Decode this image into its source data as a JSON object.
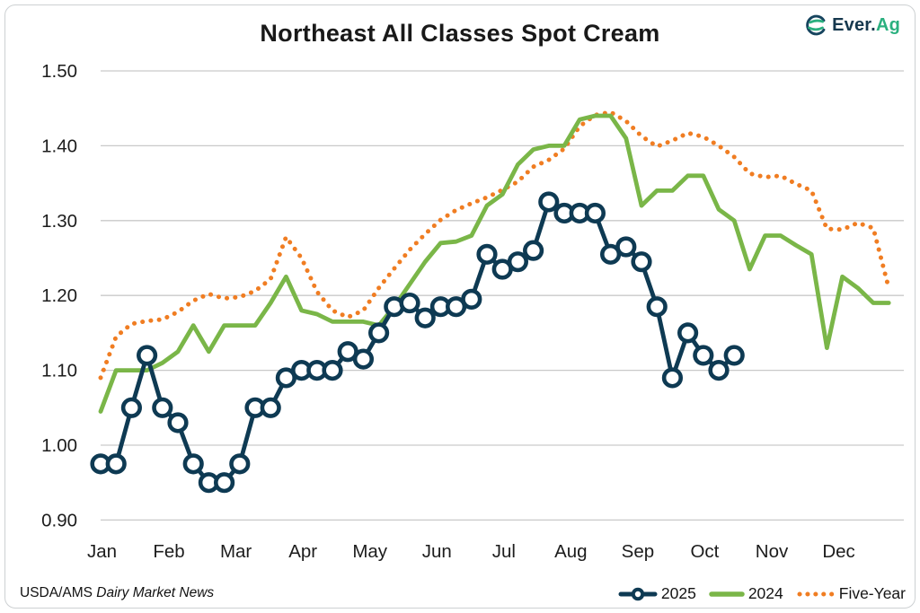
{
  "header": {
    "title": "Northeast All Classes Spot Cream",
    "logo": {
      "brand_prefix": "Ever.",
      "brand_suffix": "Ag"
    }
  },
  "footer": {
    "source_prefix": "USDA/AMS ",
    "source_name": "Dairy Market News"
  },
  "legend": {
    "items": [
      {
        "label": "2025",
        "color": "#0e3a53",
        "style": "line-marker"
      },
      {
        "label": "2024",
        "color": "#7ab648",
        "style": "line"
      },
      {
        "label": "Five-Year",
        "color": "#f07d22",
        "style": "dotted"
      }
    ]
  },
  "chart_data": {
    "type": "line",
    "title": "Northeast All Classes Spot Cream",
    "xlabel": "",
    "ylabel": "",
    "grid": "horizontal",
    "legend_position": "bottom-right",
    "x_axis": {
      "months": [
        "Jan",
        "Feb",
        "Mar",
        "Apr",
        "May",
        "Jun",
        "Jul",
        "Aug",
        "Sep",
        "Oct",
        "Nov",
        "Dec"
      ],
      "cadence": "weekly"
    },
    "y_axis": {
      "ticks": [
        1.5,
        1.4,
        1.3,
        1.2,
        1.1,
        1.0,
        0.9
      ],
      "range": [
        0.9,
        1.5
      ],
      "format": "multiple"
    },
    "series": [
      {
        "name": "2025",
        "color": "#0e3a53",
        "marker": "circle",
        "values": [
          0.975,
          0.975,
          1.05,
          1.12,
          1.05,
          1.03,
          0.975,
          0.95,
          0.95,
          0.975,
          1.05,
          1.05,
          1.09,
          1.1,
          1.1,
          1.1,
          1.125,
          1.115,
          1.15,
          1.185,
          1.19,
          1.17,
          1.185,
          1.185,
          1.195,
          1.255,
          1.235,
          1.245,
          1.26,
          1.325,
          1.31,
          1.31,
          1.31,
          1.255,
          1.265,
          1.245,
          1.185,
          1.09,
          1.15,
          1.12,
          1.1,
          1.12
        ]
      },
      {
        "name": "2024",
        "color": "#7ab648",
        "marker": "none",
        "values": [
          1.045,
          1.1,
          1.1,
          1.1,
          1.11,
          1.125,
          1.16,
          1.125,
          1.16,
          1.16,
          1.16,
          1.19,
          1.225,
          1.18,
          1.175,
          1.165,
          1.165,
          1.165,
          1.16,
          1.185,
          1.215,
          1.245,
          1.27,
          1.272,
          1.28,
          1.32,
          1.335,
          1.375,
          1.395,
          1.4,
          1.4,
          1.435,
          1.44,
          1.44,
          1.41,
          1.32,
          1.34,
          1.34,
          1.36,
          1.36,
          1.315,
          1.3,
          1.235,
          1.28,
          1.28,
          1.267,
          1.255,
          1.13,
          1.225,
          1.21,
          1.19,
          1.19
        ]
      },
      {
        "name": "Five-Year",
        "color": "#f07d22",
        "marker": "none",
        "style": "dotted",
        "values": [
          1.09,
          1.145,
          1.162,
          1.166,
          1.168,
          1.178,
          1.193,
          1.202,
          1.196,
          1.198,
          1.206,
          1.222,
          1.278,
          1.25,
          1.205,
          1.18,
          1.171,
          1.18,
          1.21,
          1.236,
          1.261,
          1.282,
          1.301,
          1.314,
          1.323,
          1.331,
          1.341,
          1.352,
          1.372,
          1.381,
          1.396,
          1.426,
          1.441,
          1.445,
          1.433,
          1.413,
          1.399,
          1.407,
          1.417,
          1.412,
          1.4,
          1.385,
          1.363,
          1.358,
          1.36,
          1.349,
          1.34,
          1.289,
          1.288,
          1.297,
          1.29,
          1.21
        ]
      }
    ]
  }
}
